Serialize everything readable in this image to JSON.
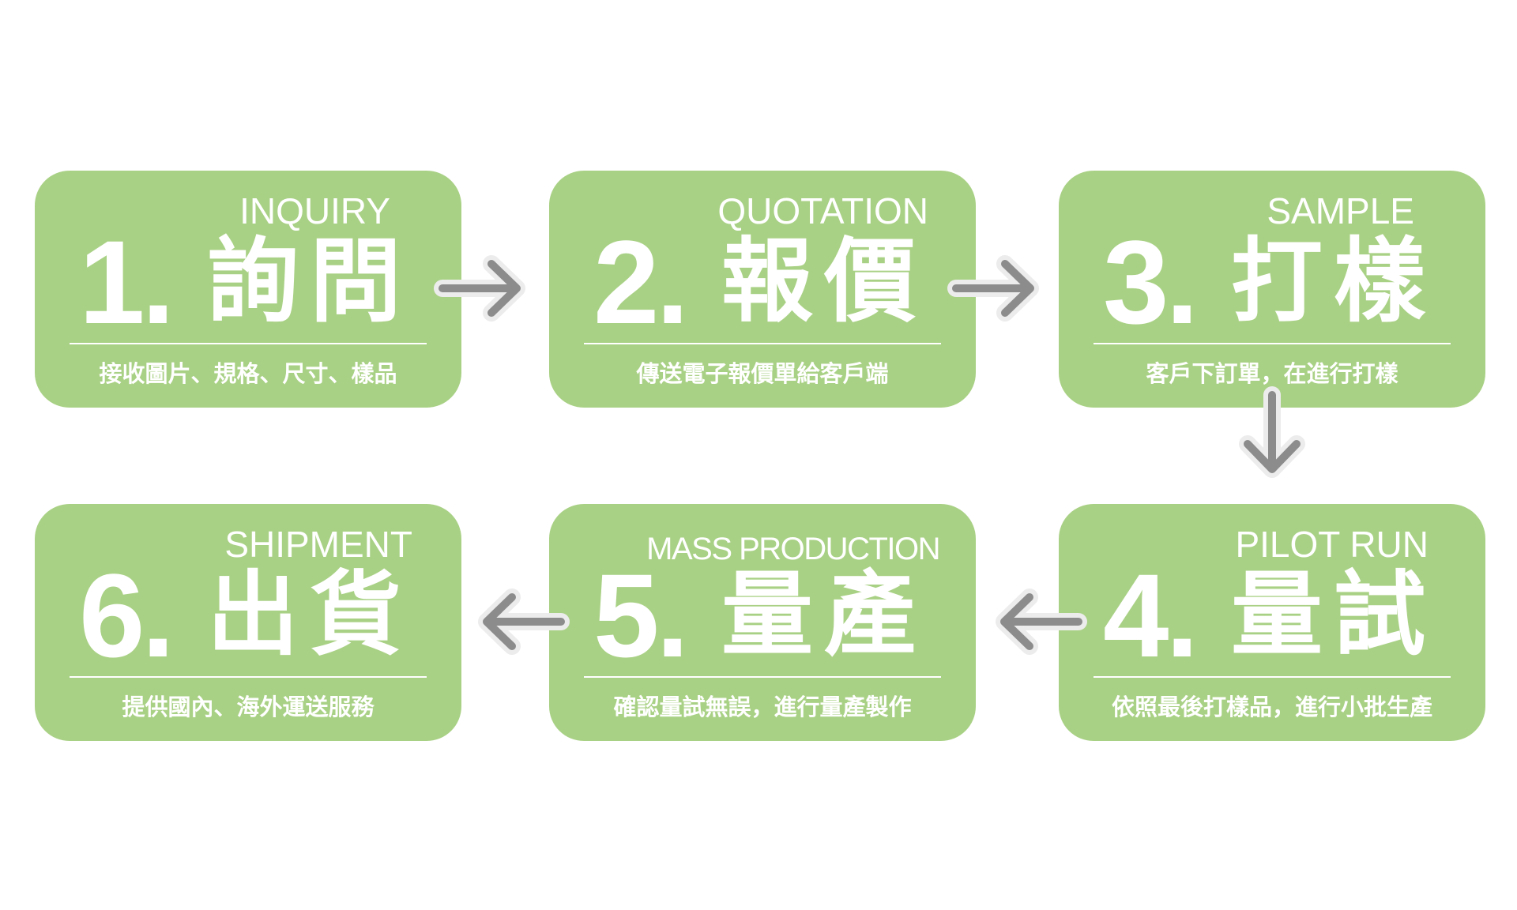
{
  "steps": [
    {
      "en": "INQUIRY",
      "num": "1.",
      "zh": "詢問",
      "desc": "接收圖片、規格、尺寸、樣品"
    },
    {
      "en": "QUOTATION",
      "num": "2.",
      "zh": "報價",
      "desc": "傳送電子報價單給客戶端"
    },
    {
      "en": "SAMPLE",
      "num": "3.",
      "zh": "打樣",
      "desc": "客戶下訂單，在進行打樣"
    },
    {
      "en": "PILOT RUN",
      "num": "4.",
      "zh": "量試",
      "desc": "依照最後打樣品，進行小批生產"
    },
    {
      "en": "MASS PRODUCTION",
      "num": "5.",
      "zh": "量產",
      "desc": "確認量試無誤，進行量產製作"
    },
    {
      "en": "SHIPMENT",
      "num": "6.",
      "zh": "出貨",
      "desc": "提供國內、海外運送服務"
    }
  ],
  "colors": {
    "card": "#a9d185",
    "arrow": "#8c8c8c",
    "arrow_halo": "#ececec",
    "text": "#ffffff"
  }
}
